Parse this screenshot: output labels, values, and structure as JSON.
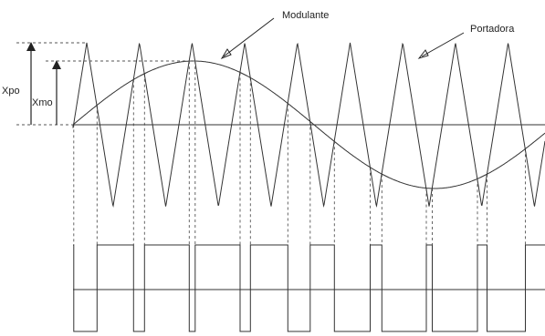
{
  "labels": {
    "modulante": "Modulante",
    "portadora": "Portadora",
    "xpo": "Xpo",
    "xmo": "Xmo"
  },
  "colors": {
    "line": "#333333",
    "background": "#ffffff"
  }
}
